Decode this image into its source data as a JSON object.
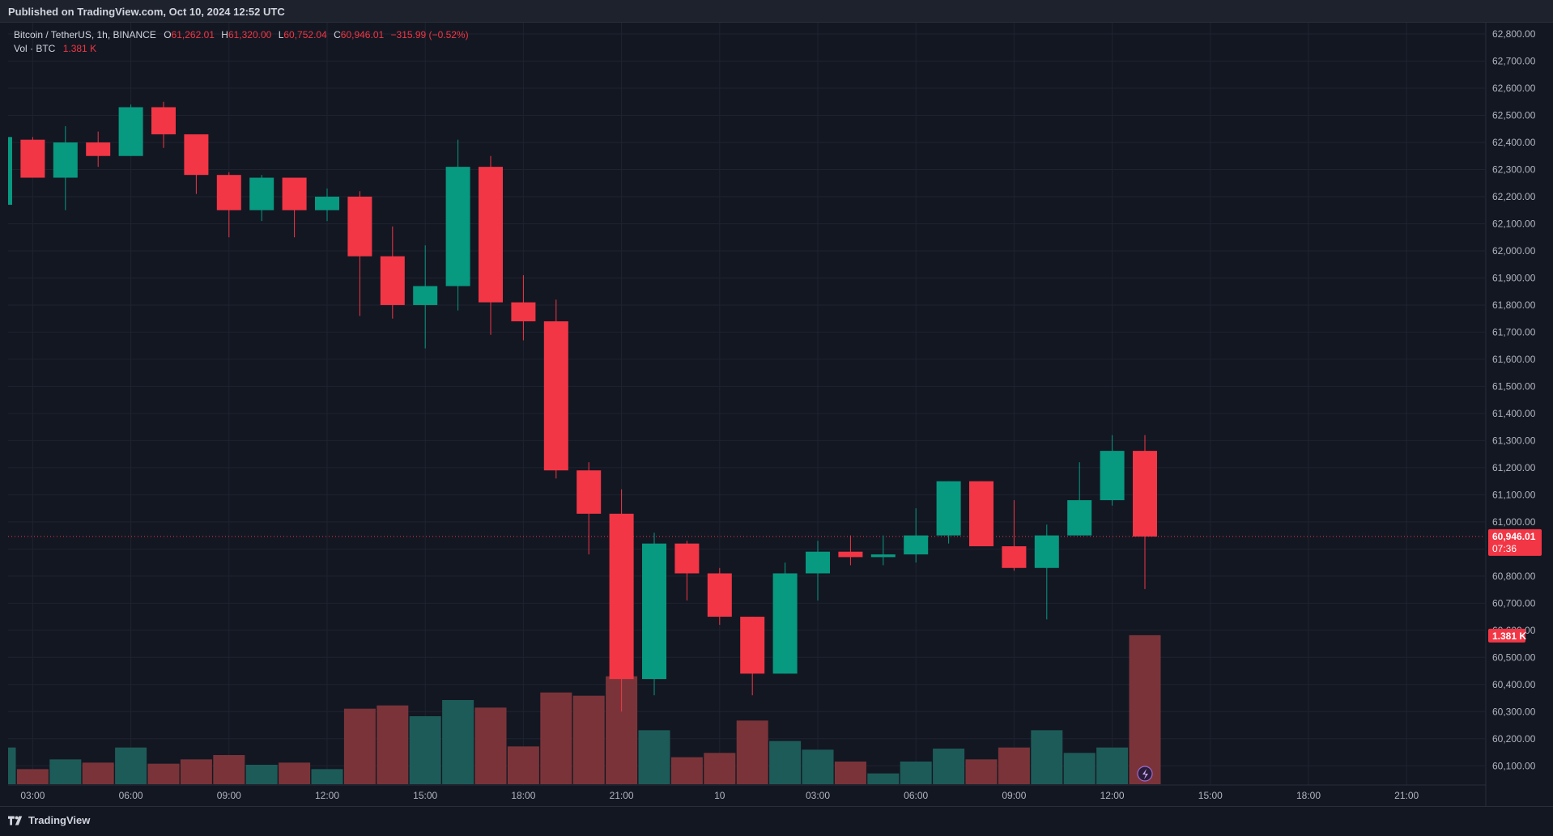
{
  "header": {
    "published": "Published on TradingView.com, Oct 10, 2024 12:52 UTC"
  },
  "legend": {
    "symbol": "Bitcoin / TetherUS, 1h, BINANCE",
    "o_label": "O",
    "o_value": "61,262.01",
    "h_label": "H",
    "h_value": "61,320.00",
    "l_label": "L",
    "l_value": "60,752.04",
    "c_label": "C",
    "c_value": "60,946.01",
    "change": "−315.99 (−0.52%)",
    "vol_label": "Vol · BTC",
    "vol_value": "1.381 K"
  },
  "footer": {
    "brand": "TradingView"
  },
  "colors": {
    "background": "#131722",
    "up": "#089981",
    "down": "#f23645",
    "up_volume": "#1d5b59",
    "down_volume": "#7a3439",
    "grid": "#1f2330",
    "text": "#b2b5be"
  },
  "chart_data": {
    "type": "candlestick",
    "symbol": "BTC/USDT",
    "interval": "1h",
    "exchange": "BINANCE",
    "y_axis": {
      "min": 60050,
      "max": 62830,
      "ticks": [
        60100,
        60200,
        60300,
        60400,
        60500,
        60600,
        60700,
        60800,
        60900,
        61000,
        61100,
        61200,
        61300,
        61400,
        61500,
        61600,
        61700,
        61800,
        61900,
        62000,
        62100,
        62200,
        62300,
        62400,
        62500,
        62600,
        62700,
        62800
      ],
      "tick_labels": [
        "60,100.00",
        "60,200.00",
        "60,300.00",
        "60,400.00",
        "60,500.00",
        "60,600.00",
        "60,700.00",
        "60,800.00",
        "60,900.00",
        "61,000.00",
        "61,100.00",
        "61,200.00",
        "61,300.00",
        "61,400.00",
        "61,500.00",
        "61,600.00",
        "61,700.00",
        "61,800.00",
        "61,900.00",
        "62,000.00",
        "62,100.00",
        "62,200.00",
        "62,300.00",
        "62,400.00",
        "62,500.00",
        "62,600.00",
        "62,700.00",
        "62,800.00"
      ]
    },
    "x_axis": {
      "labels": [
        "03:00",
        "06:00",
        "09:00",
        "12:00",
        "15:00",
        "18:00",
        "21:00",
        "10",
        "03:00",
        "06:00",
        "09:00",
        "12:00",
        "15:00",
        "18:00",
        "21:00"
      ],
      "label_index": [
        1,
        4,
        7,
        10,
        13,
        16,
        19,
        22,
        25,
        28,
        31,
        34,
        37,
        40,
        43
      ],
      "total_slots": 46
    },
    "last_price": {
      "value": 60946.01,
      "label": "60,946.01",
      "countdown": "07:36"
    },
    "volume_label": "1.381 K",
    "volume_max": 1.8,
    "candles": [
      {
        "o": 62170,
        "h": 62420,
        "l": 62170,
        "c": 62420,
        "v": 0.34
      },
      {
        "o": 62410,
        "h": 62420,
        "l": 62270,
        "c": 62270,
        "v": 0.14
      },
      {
        "o": 62270,
        "h": 62460,
        "l": 62150,
        "c": 62400,
        "v": 0.23
      },
      {
        "o": 62400,
        "h": 62440,
        "l": 62310,
        "c": 62350,
        "v": 0.2
      },
      {
        "o": 62350,
        "h": 62540,
        "l": 62350,
        "c": 62530,
        "v": 0.34
      },
      {
        "o": 62530,
        "h": 62550,
        "l": 62380,
        "c": 62430,
        "v": 0.19
      },
      {
        "o": 62430,
        "h": 62430,
        "l": 62210,
        "c": 62280,
        "v": 0.23
      },
      {
        "o": 62280,
        "h": 62290,
        "l": 62050,
        "c": 62150,
        "v": 0.27
      },
      {
        "o": 62150,
        "h": 62280,
        "l": 62110,
        "c": 62270,
        "v": 0.18
      },
      {
        "o": 62270,
        "h": 62270,
        "l": 62050,
        "c": 62150,
        "v": 0.2
      },
      {
        "o": 62150,
        "h": 62230,
        "l": 62110,
        "c": 62200,
        "v": 0.14
      },
      {
        "o": 62200,
        "h": 62220,
        "l": 61760,
        "c": 61980,
        "v": 0.7
      },
      {
        "o": 61980,
        "h": 62090,
        "l": 61750,
        "c": 61800,
        "v": 0.73
      },
      {
        "o": 61800,
        "h": 62020,
        "l": 61640,
        "c": 61870,
        "v": 0.63
      },
      {
        "o": 61870,
        "h": 62410,
        "l": 61780,
        "c": 62310,
        "v": 0.78
      },
      {
        "o": 62310,
        "h": 62350,
        "l": 61690,
        "c": 61810,
        "v": 0.71
      },
      {
        "o": 61810,
        "h": 61910,
        "l": 61670,
        "c": 61740,
        "v": 0.35
      },
      {
        "o": 61740,
        "h": 61820,
        "l": 61160,
        "c": 61190,
        "v": 0.85
      },
      {
        "o": 61190,
        "h": 61220,
        "l": 60880,
        "c": 61030,
        "v": 0.82
      },
      {
        "o": 61030,
        "h": 61120,
        "l": 60300,
        "c": 60420,
        "v": 1.0
      },
      {
        "o": 60420,
        "h": 60960,
        "l": 60360,
        "c": 60920,
        "v": 0.5
      },
      {
        "o": 60920,
        "h": 60930,
        "l": 60710,
        "c": 60810,
        "v": 0.25
      },
      {
        "o": 60810,
        "h": 60830,
        "l": 60620,
        "c": 60650,
        "v": 0.29
      },
      {
        "o": 60650,
        "h": 60650,
        "l": 60360,
        "c": 60440,
        "v": 0.59
      },
      {
        "o": 60440,
        "h": 60850,
        "l": 60440,
        "c": 60810,
        "v": 0.4
      },
      {
        "o": 60810,
        "h": 60930,
        "l": 60710,
        "c": 60890,
        "v": 0.32
      },
      {
        "o": 60890,
        "h": 60950,
        "l": 60840,
        "c": 60870,
        "v": 0.21
      },
      {
        "o": 60870,
        "h": 60950,
        "l": 60840,
        "c": 60880,
        "v": 0.1
      },
      {
        "o": 60880,
        "h": 61050,
        "l": 60850,
        "c": 60950,
        "v": 0.21
      },
      {
        "o": 60950,
        "h": 61150,
        "l": 60920,
        "c": 61150,
        "v": 0.33
      },
      {
        "o": 61150,
        "h": 61150,
        "l": 60910,
        "c": 60910,
        "v": 0.23
      },
      {
        "o": 60910,
        "h": 61080,
        "l": 60820,
        "c": 60830,
        "v": 0.34
      },
      {
        "o": 60830,
        "h": 60990,
        "l": 60640,
        "c": 60950,
        "v": 0.5
      },
      {
        "o": 60950,
        "h": 61220,
        "l": 60950,
        "c": 61080,
        "v": 0.29
      },
      {
        "o": 61080,
        "h": 61320,
        "l": 61060,
        "c": 61262,
        "v": 0.34
      },
      {
        "o": 61262.01,
        "h": 61320,
        "l": 60752.04,
        "c": 60946.01,
        "v": 1.381
      }
    ]
  }
}
